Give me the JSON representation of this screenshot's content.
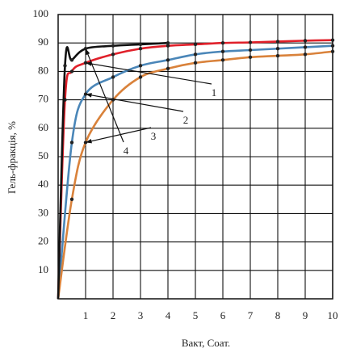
{
  "chart_data": {
    "type": "line",
    "x_label": "Вакт, Соат.",
    "y_label": "Гель-фракція, %",
    "xlim": [
      0,
      10
    ],
    "xticks": [
      1,
      2,
      3,
      4,
      5,
      6,
      7,
      8,
      9,
      10
    ],
    "ylim": [
      0,
      100
    ],
    "yticks": [
      10,
      20,
      30,
      40,
      50,
      60,
      70,
      80,
      90,
      100
    ],
    "grid": true,
    "series": [
      {
        "name": "1",
        "color": "#e0202a",
        "x": [
          0,
          0.25,
          0.5,
          1,
          2,
          3,
          4,
          5,
          6,
          7,
          8,
          9,
          10
        ],
        "values": [
          0,
          70,
          80,
          83,
          86,
          88,
          89,
          89.5,
          90,
          90.2,
          90.5,
          90.8,
          91
        ]
      },
      {
        "name": "2",
        "color": "#4a86b8",
        "x": [
          0,
          0.5,
          1,
          2,
          3,
          4,
          5,
          6,
          7,
          8,
          9,
          10
        ],
        "values": [
          0,
          55,
          72,
          78,
          82,
          84,
          86,
          87,
          87.5,
          88,
          88.5,
          89
        ]
      },
      {
        "name": "3",
        "color": "#d9823b",
        "x": [
          0,
          0.5,
          1,
          2,
          3,
          4,
          5,
          6,
          7,
          8,
          9,
          10
        ],
        "values": [
          0,
          35,
          55,
          70,
          78,
          81,
          83,
          84,
          85,
          85.5,
          86,
          87
        ]
      },
      {
        "name": "4",
        "color": "#111111",
        "x": [
          0,
          0.25,
          0.5,
          1,
          2,
          3,
          4
        ],
        "values": [
          0,
          82,
          84,
          88,
          89,
          89.5,
          90
        ]
      }
    ]
  }
}
